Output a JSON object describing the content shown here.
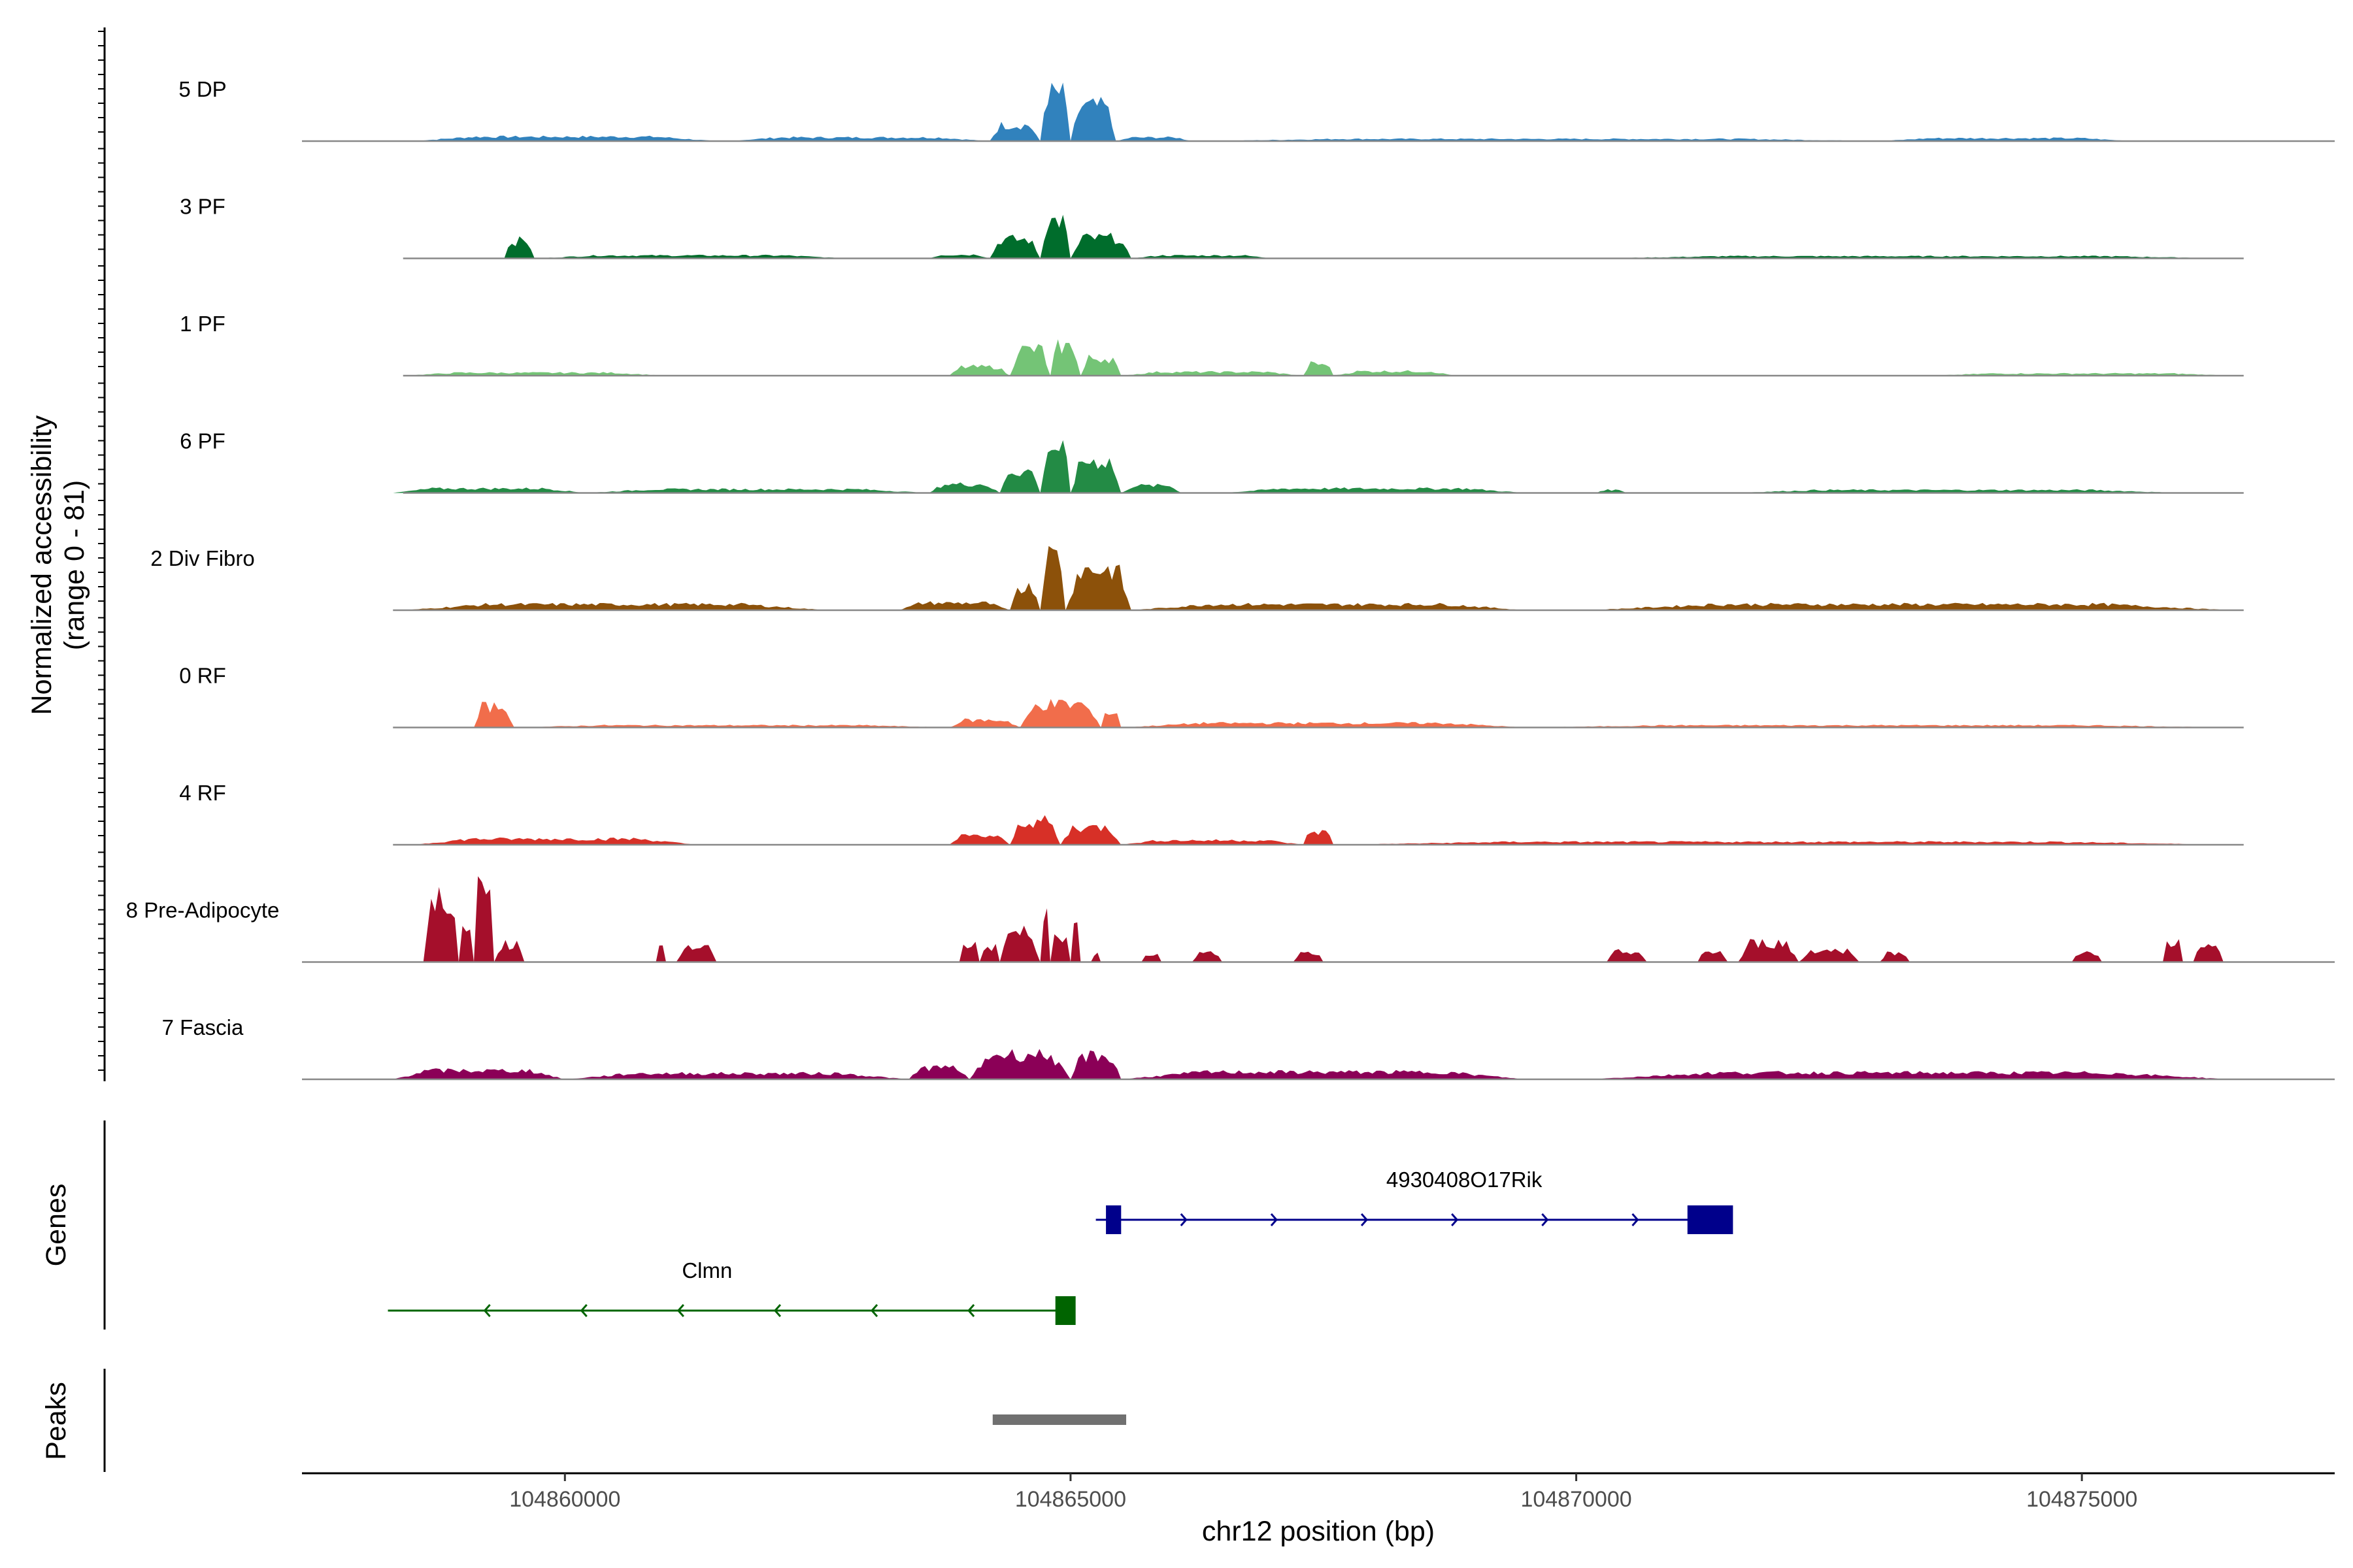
{
  "chart_data": {
    "type": "area",
    "x_axis": {
      "title": "chr12 position (bp)",
      "range": [
        104857400,
        104877500
      ],
      "ticks": [
        104860000,
        104865000,
        104870000,
        104875000
      ],
      "tick_labels": [
        "104860000",
        "104865000",
        "104870000",
        "104875000"
      ]
    },
    "y_axis": {
      "title_line1": "Normalized accessibility",
      "title_line2": "(range 0 - 81)",
      "range": [
        0,
        81
      ]
    },
    "tracks": [
      {
        "name": "5 DP",
        "color": "#3182bd",
        "baseline_start": 104857400,
        "baseline_end": 104877500,
        "peaks": [
          [
            104858500,
            104861500,
            3
          ],
          [
            104861600,
            104864200,
            2.5
          ],
          [
            104864200,
            104864700,
            11
          ],
          [
            104864700,
            104865000,
            33
          ],
          [
            104865000,
            104865450,
            24
          ],
          [
            104865450,
            104866200,
            2.5
          ],
          [
            104866300,
            104873000,
            1.5
          ],
          [
            104873000,
            104875500,
            2
          ]
        ]
      },
      {
        "name": "3 PF",
        "color": "#006d2c",
        "baseline_start": 104858400,
        "baseline_end": 104876600,
        "peaks": [
          [
            104859400,
            104859700,
            12
          ],
          [
            104859700,
            104862800,
            2
          ],
          [
            104863600,
            104864200,
            2.5
          ],
          [
            104864200,
            104864700,
            13
          ],
          [
            104864700,
            104865000,
            26
          ],
          [
            104865000,
            104865600,
            14
          ],
          [
            104865600,
            104867000,
            2
          ],
          [
            104870200,
            104876500,
            1.5
          ]
        ]
      },
      {
        "name": "1 PF",
        "color": "#74c476",
        "baseline_start": 104858400,
        "baseline_end": 104876600,
        "peaks": [
          [
            104858400,
            104861000,
            2
          ],
          [
            104863800,
            104864400,
            6
          ],
          [
            104864400,
            104864800,
            18
          ],
          [
            104864800,
            104865100,
            20
          ],
          [
            104865100,
            104865500,
            12
          ],
          [
            104865500,
            104867300,
            2.5
          ],
          [
            104867300,
            104867600,
            8
          ],
          [
            104867600,
            104868800,
            3
          ],
          [
            104873500,
            104876500,
            1.5
          ]
        ]
      },
      {
        "name": "6 PF",
        "color": "#238b45",
        "baseline_start": 104858400,
        "baseline_end": 104876600,
        "peaks": [
          [
            104858300,
            104860200,
            3
          ],
          [
            104860200,
            104863600,
            2.5
          ],
          [
            104863600,
            104864300,
            6
          ],
          [
            104864300,
            104864700,
            15
          ],
          [
            104864700,
            104865000,
            31
          ],
          [
            104865000,
            104865500,
            22
          ],
          [
            104865500,
            104866100,
            5
          ],
          [
            104866500,
            104869500,
            3
          ],
          [
            104870200,
            104870500,
            2
          ],
          [
            104871500,
            104876000,
            2
          ]
        ]
      },
      {
        "name": "2 Div Fibro",
        "color": "#8c510a",
        "baseline_start": 104858300,
        "baseline_end": 104876600,
        "peaks": [
          [
            104858400,
            104862600,
            4
          ],
          [
            104863300,
            104864400,
            5
          ],
          [
            104864400,
            104864700,
            16
          ],
          [
            104864700,
            104864950,
            38
          ],
          [
            104864950,
            104865600,
            28
          ],
          [
            104865600,
            104869500,
            4
          ],
          [
            104870100,
            104876500,
            4
          ]
        ]
      },
      {
        "name": "0 RF",
        "color": "#f16d4b",
        "baseline_start": 104858300,
        "baseline_end": 104876600,
        "peaks": [
          [
            104859100,
            104859500,
            14
          ],
          [
            104859500,
            104863800,
            1.5
          ],
          [
            104863800,
            104864500,
            5
          ],
          [
            104864500,
            104865300,
            16
          ],
          [
            104865300,
            104865500,
            10
          ],
          [
            104865500,
            104869500,
            3
          ],
          [
            104869500,
            104876500,
            1.5
          ]
        ]
      },
      {
        "name": "4 RF",
        "color": "#d73027",
        "baseline_start": 104858300,
        "baseline_end": 104876600,
        "peaks": [
          [
            104858500,
            104861300,
            4
          ],
          [
            104863800,
            104864400,
            6
          ],
          [
            104864400,
            104864900,
            16
          ],
          [
            104864900,
            104865500,
            12
          ],
          [
            104865500,
            104867300,
            3
          ],
          [
            104867300,
            104867600,
            9
          ],
          [
            104867600,
            104876500,
            2
          ]
        ]
      },
      {
        "name": "8 Pre-Adipocyte",
        "color": "#a50f2b",
        "baseline_start": 104857400,
        "baseline_end": 104877500,
        "peaks": [
          [
            104858600,
            104858950,
            45
          ],
          [
            104858950,
            104859100,
            20
          ],
          [
            104859100,
            104859300,
            48
          ],
          [
            104859300,
            104859600,
            12
          ],
          [
            104860900,
            104861000,
            13
          ],
          [
            104861100,
            104861500,
            10
          ],
          [
            104863900,
            104864100,
            12
          ],
          [
            104864100,
            104864300,
            10
          ],
          [
            104864300,
            104864700,
            20
          ],
          [
            104864700,
            104864800,
            35
          ],
          [
            104864800,
            104865000,
            15
          ],
          [
            104865000,
            104865100,
            30
          ],
          [
            104865200,
            104865300,
            6
          ],
          [
            104865700,
            104865900,
            6
          ],
          [
            104866200,
            104866500,
            6
          ],
          [
            104867200,
            104867500,
            6
          ],
          [
            104870300,
            104870700,
            7
          ],
          [
            104871200,
            104871500,
            7
          ],
          [
            104871600,
            104872200,
            13
          ],
          [
            104872200,
            104872800,
            8
          ],
          [
            104873000,
            104873300,
            6
          ],
          [
            104874900,
            104875200,
            6
          ],
          [
            104875800,
            104876000,
            14
          ],
          [
            104876100,
            104876400,
            10
          ]
        ]
      },
      {
        "name": "7 Fascia",
        "color": "#8b0057",
        "baseline_start": 104857400,
        "baseline_end": 104877500,
        "peaks": [
          [
            104858300,
            104860000,
            6
          ],
          [
            104860000,
            104863400,
            4
          ],
          [
            104863400,
            104864000,
            8
          ],
          [
            104864000,
            104865000,
            17
          ],
          [
            104865000,
            104865500,
            16
          ],
          [
            104865500,
            104869500,
            5
          ],
          [
            104870100,
            104876500,
            4.5
          ]
        ]
      }
    ],
    "genes_track": {
      "title": "Genes",
      "genes": [
        {
          "name": "4930408O17Rik",
          "strand": "+",
          "color": "#00008b",
          "start": 104865250,
          "end": 104871500,
          "exons": [
            [
              104865350,
              104865500
            ],
            [
              104871100,
              104871550
            ]
          ]
        },
        {
          "name": "Clmn",
          "strand": "-",
          "color": "#006400",
          "start": 104858250,
          "end": 104864950,
          "exons": [
            [
              104864850,
              104865050
            ]
          ]
        }
      ]
    },
    "peaks_track": {
      "title": "Peaks",
      "color": "#707070",
      "peaks": [
        [
          104864230,
          104865550
        ]
      ]
    }
  }
}
